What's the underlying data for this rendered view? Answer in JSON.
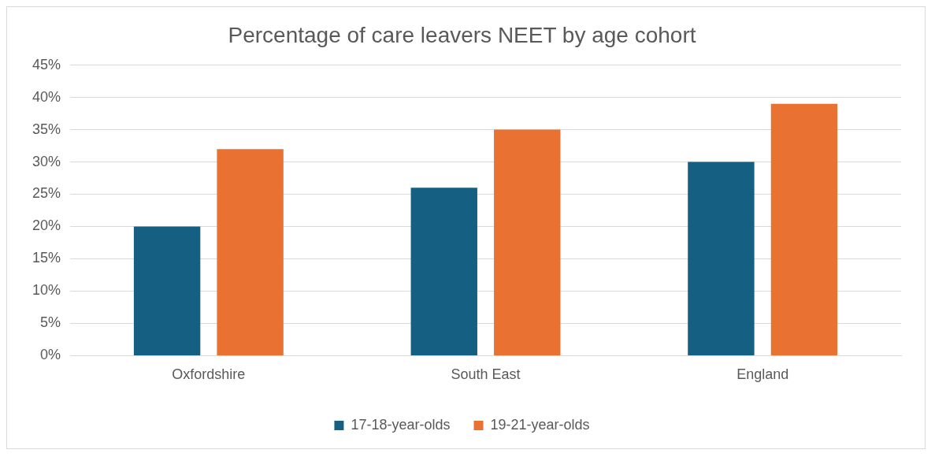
{
  "chart_data": {
    "type": "bar",
    "title": "Percentage of care leavers NEET by age cohort",
    "categories": [
      "Oxfordshire",
      "South East",
      "England"
    ],
    "series": [
      {
        "name": "17-18-year-olds",
        "color": "#155f82",
        "values": [
          20,
          26,
          30
        ]
      },
      {
        "name": "19-21-year-olds",
        "color": "#e97132",
        "values": [
          32,
          35,
          39
        ]
      }
    ],
    "ylim": [
      0,
      45
    ],
    "yticks": [
      {
        "value": 0,
        "label": "0%"
      },
      {
        "value": 5,
        "label": "5%"
      },
      {
        "value": 10,
        "label": "10%"
      },
      {
        "value": 15,
        "label": "15%"
      },
      {
        "value": 20,
        "label": "20%"
      },
      {
        "value": 25,
        "label": "25%"
      },
      {
        "value": 30,
        "label": "30%"
      },
      {
        "value": 35,
        "label": "35%"
      },
      {
        "value": 40,
        "label": "40%"
      },
      {
        "value": 45,
        "label": "45%"
      }
    ],
    "grid": "y",
    "legend": "bottom"
  }
}
